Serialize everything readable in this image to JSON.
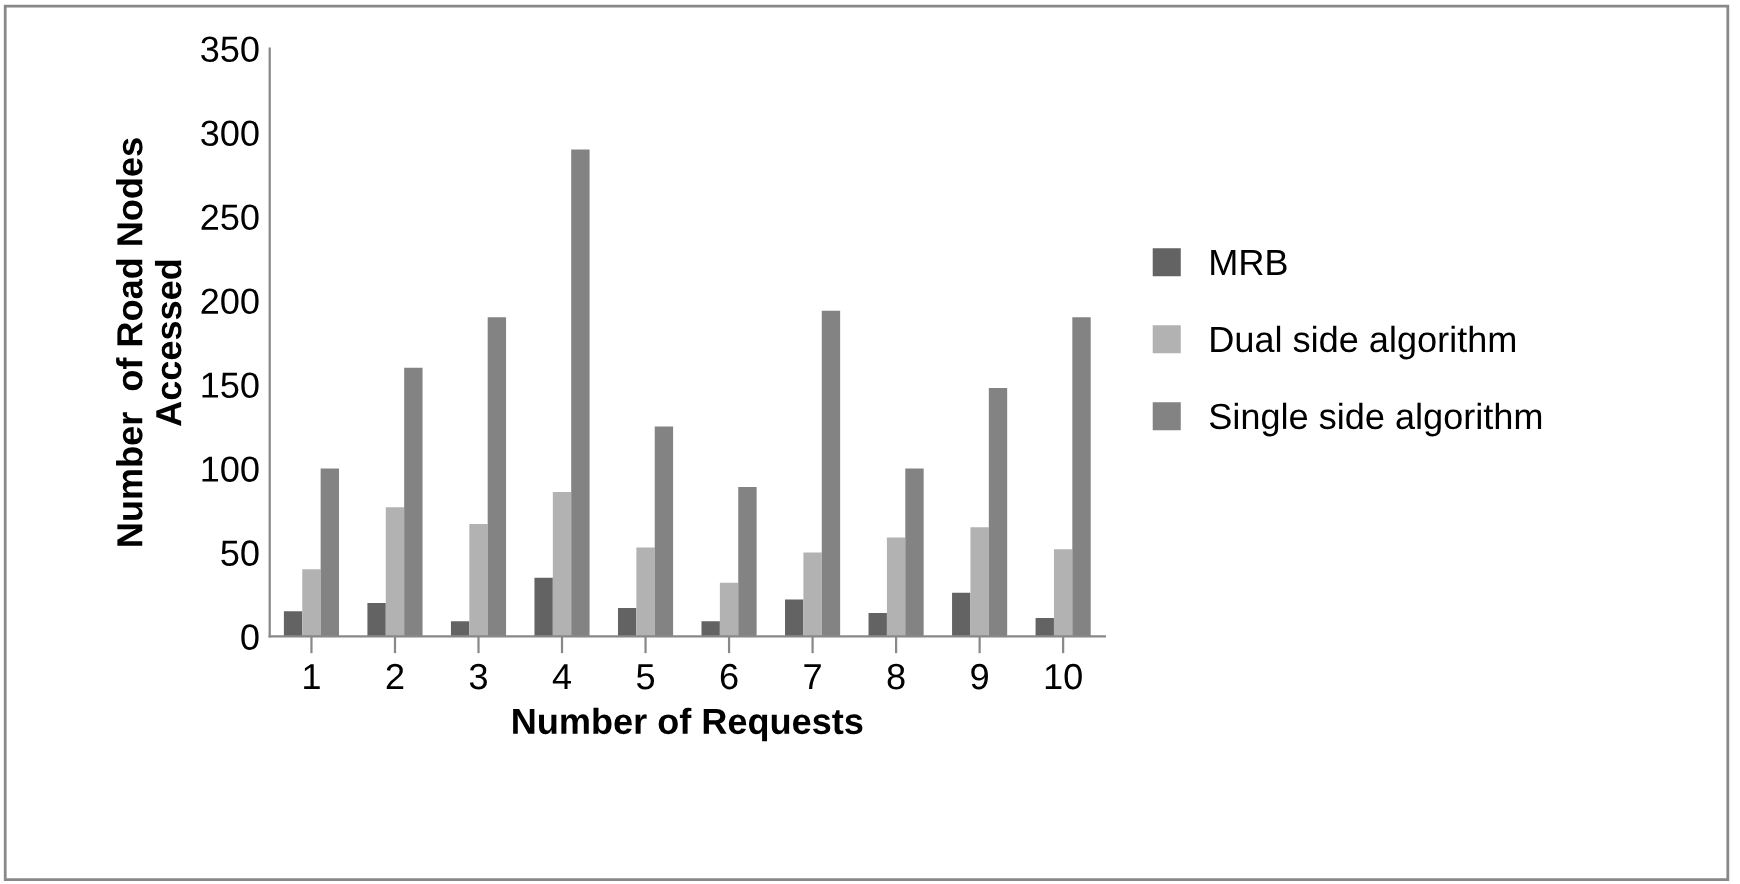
{
  "chart_data": {
    "type": "bar",
    "xlabel": "Number of Requests",
    "ylabel": "Number  of Road Nodes\nAccessed",
    "categories": [
      "1",
      "2",
      "3",
      "4",
      "5",
      "6",
      "7",
      "8",
      "9",
      "10"
    ],
    "series": [
      {
        "name": "MRB",
        "color": "#636363",
        "values": [
          15,
          20,
          9,
          35,
          17,
          9,
          22,
          14,
          26,
          11
        ]
      },
      {
        "name": "Dual side algorithm",
        "color": "#b2b2b2",
        "values": [
          40,
          77,
          67,
          86,
          53,
          32,
          50,
          59,
          65,
          52
        ]
      },
      {
        "name": "Single side algorithm",
        "color": "#838383",
        "values": [
          100,
          160,
          190,
          290,
          125,
          89,
          194,
          100,
          148,
          190
        ]
      }
    ],
    "ylim": [
      0,
      350
    ],
    "yticks": [
      0,
      50,
      100,
      150,
      200,
      250,
      300,
      350
    ],
    "grid": false,
    "legend": "right"
  }
}
